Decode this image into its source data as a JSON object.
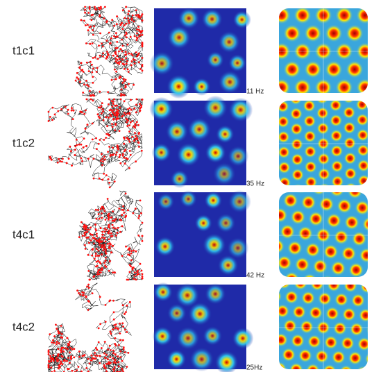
{
  "rows": [
    {
      "label": "t1c1",
      "peak_rate": "11 Hz"
    },
    {
      "label": "t1c2",
      "peak_rate": "35 Hz"
    },
    {
      "label": "t4c1",
      "peak_rate": "42 Hz"
    },
    {
      "label": "t4c2",
      "peak_rate": "25Hz"
    }
  ]
}
